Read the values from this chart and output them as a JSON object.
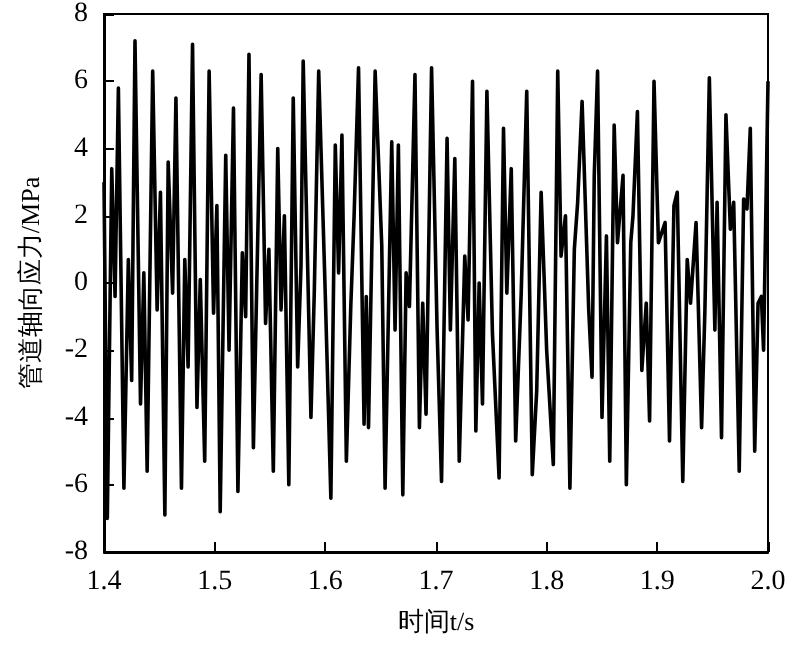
{
  "chart_data": {
    "type": "line",
    "xlabel": "时间t/s",
    "ylabel": "管道轴向应力/MPa",
    "xlim": [
      1.4,
      2.0
    ],
    "xticks": [
      1.4,
      1.5,
      1.6,
      1.7,
      1.8,
      1.9,
      {
        "value": 2,
        "label": "2.0"
      }
    ],
    "ylim": [
      -8,
      8
    ],
    "yticks": [
      -8,
      -6,
      -4,
      -2,
      0,
      2,
      4,
      6,
      8
    ],
    "grid": false,
    "marker": "none",
    "line_style": "solid",
    "x": [
      1.4,
      1.403,
      1.407,
      1.41,
      1.413,
      1.418,
      1.422,
      1.425,
      1.428,
      1.433,
      1.436,
      1.439,
      1.444,
      1.448,
      1.451,
      1.455,
      1.458,
      1.462,
      1.465,
      1.47,
      1.473,
      1.476,
      1.48,
      1.484,
      1.487,
      1.491,
      1.495,
      1.499,
      1.502,
      1.505,
      1.51,
      1.513,
      1.517,
      1.521,
      1.525,
      1.528,
      1.531,
      1.535,
      1.538,
      1.542,
      1.546,
      1.549,
      1.553,
      1.557,
      1.56,
      1.563,
      1.567,
      1.571,
      1.575,
      1.578,
      1.58,
      1.587,
      1.59,
      1.594,
      1.6,
      1.605,
      1.609,
      1.612,
      1.615,
      1.619,
      1.623,
      1.626,
      1.63,
      1.635,
      1.637,
      1.639,
      1.645,
      1.651,
      1.654,
      1.66,
      1.663,
      1.666,
      1.67,
      1.673,
      1.676,
      1.681,
      1.685,
      1.688,
      1.691,
      1.696,
      1.701,
      1.705,
      1.71,
      1.713,
      1.717,
      1.721,
      1.726,
      1.729,
      1.733,
      1.736,
      1.739,
      1.742,
      1.746,
      1.751,
      1.757,
      1.761,
      1.764,
      1.768,
      1.772,
      1.777,
      1.782,
      1.787,
      1.791,
      1.795,
      1.8,
      1.806,
      1.81,
      1.813,
      1.817,
      1.821,
      1.825,
      1.828,
      1.832,
      1.838,
      1.841,
      1.843,
      1.846,
      1.85,
      1.854,
      1.857,
      1.861,
      1.864,
      1.869,
      1.872,
      1.876,
      1.878,
      1.882,
      1.886,
      1.89,
      1.893,
      1.897,
      1.901,
      1.907,
      1.911,
      1.915,
      1.918,
      1.923,
      1.927,
      1.93,
      1.935,
      1.94,
      1.943,
      1.947,
      1.952,
      1.954,
      1.958,
      1.962,
      1.966,
      1.969,
      1.974,
      1.978,
      1.981,
      1.984,
      1.988,
      1.991,
      1.994,
      1.996,
      2.0
    ],
    "series": [
      {
        "color": "#000000",
        "values": [
          3.0,
          -7.0,
          3.4,
          -0.4,
          5.8,
          -6.1,
          0.7,
          -2.9,
          7.2,
          -3.6,
          0.3,
          -5.6,
          6.3,
          -0.8,
          2.7,
          -6.9,
          3.6,
          -0.3,
          5.5,
          -6.1,
          0.7,
          -2.5,
          7.1,
          -3.7,
          0.1,
          -5.3,
          6.3,
          -0.9,
          2.3,
          -6.8,
          3.8,
          -2.0,
          5.2,
          -6.2,
          0.9,
          -1.0,
          6.8,
          -4.9,
          -0.1,
          6.2,
          -1.2,
          1.0,
          -5.6,
          4.0,
          -0.8,
          2.0,
          -6.0,
          5.5,
          -2.5,
          0.5,
          6.6,
          -4.0,
          -0.3,
          6.3,
          -0.4,
          -6.4,
          4.1,
          0.3,
          4.4,
          -5.3,
          -0.7,
          2.0,
          6.4,
          -4.2,
          -0.4,
          -4.3,
          6.3,
          1.1,
          -6.1,
          4.2,
          -1.4,
          4.1,
          -6.3,
          0.3,
          -0.7,
          6.2,
          -4.3,
          -0.6,
          -3.9,
          6.4,
          -1.4,
          -5.9,
          4.3,
          -1.4,
          3.7,
          -5.3,
          0.8,
          -1.1,
          6.0,
          -4.4,
          0.0,
          -3.6,
          5.7,
          -1.5,
          -5.8,
          4.6,
          -0.3,
          3.4,
          -4.7,
          -0.3,
          5.7,
          -5.7,
          -3.2,
          2.7,
          -2.0,
          -5.4,
          6.3,
          0.8,
          2.0,
          -6.1,
          1.0,
          2.4,
          5.4,
          -0.8,
          -2.8,
          3.2,
          6.3,
          -4.0,
          1.4,
          -5.3,
          4.7,
          1.2,
          3.2,
          -6.0,
          1.2,
          2.0,
          5.1,
          -2.6,
          -0.6,
          -4.1,
          6.0,
          1.2,
          1.8,
          -4.7,
          2.3,
          2.7,
          -5.9,
          0.7,
          -0.6,
          1.8,
          -4.3,
          -0.8,
          6.1,
          -1.4,
          2.4,
          -4.6,
          5.0,
          1.6,
          2.4,
          -5.6,
          2.5,
          2.2,
          4.6,
          -5.0,
          -0.6,
          -0.4,
          -2.0,
          6.0
        ]
      }
    ]
  }
}
